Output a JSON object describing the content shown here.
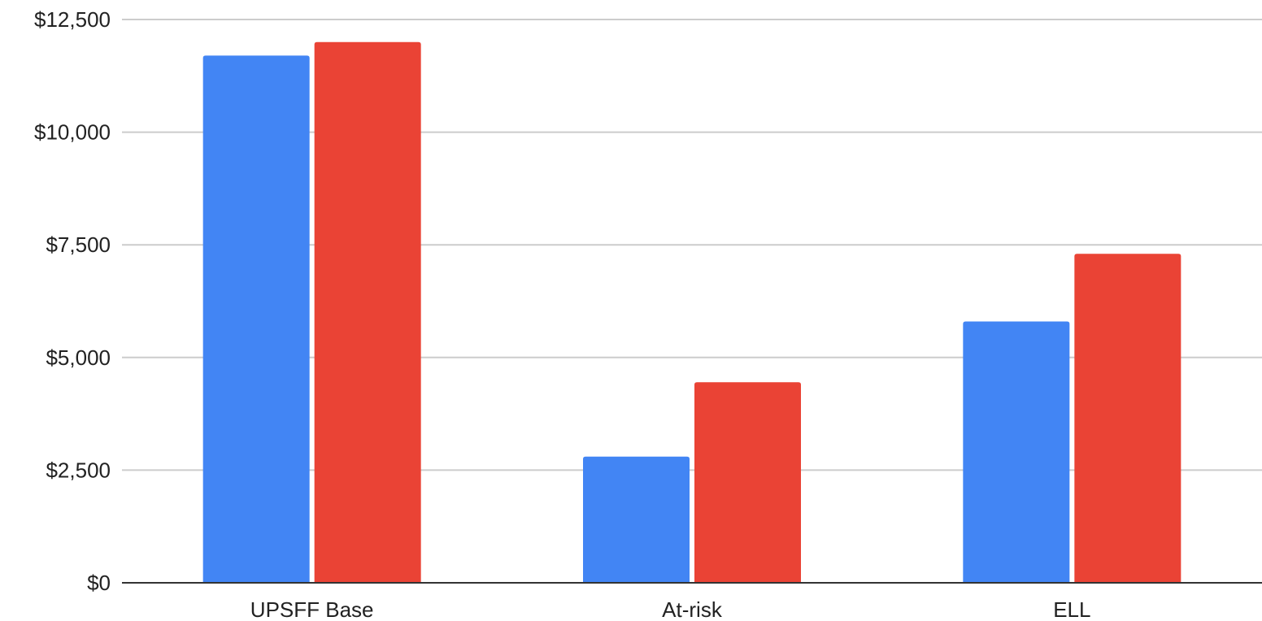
{
  "chart_data": {
    "type": "bar",
    "title": "",
    "xlabel": "",
    "ylabel": "",
    "categories": [
      "UPSFF Base",
      "At-risk",
      "ELL"
    ],
    "series": [
      {
        "values": [
          11700,
          2800,
          5800
        ],
        "color": "#4285f4"
      },
      {
        "values": [
          12000,
          4450,
          7300
        ],
        "color": "#ea4335"
      }
    ],
    "ylim": [
      0,
      12500
    ],
    "y_ticks": [
      0,
      2500,
      5000,
      7500,
      10000,
      12500
    ],
    "y_tick_labels": [
      "$0",
      "$2,500",
      "$5,000",
      "$7,500",
      "$10,000",
      "$12,500"
    ],
    "grid": true,
    "legend": "none"
  }
}
